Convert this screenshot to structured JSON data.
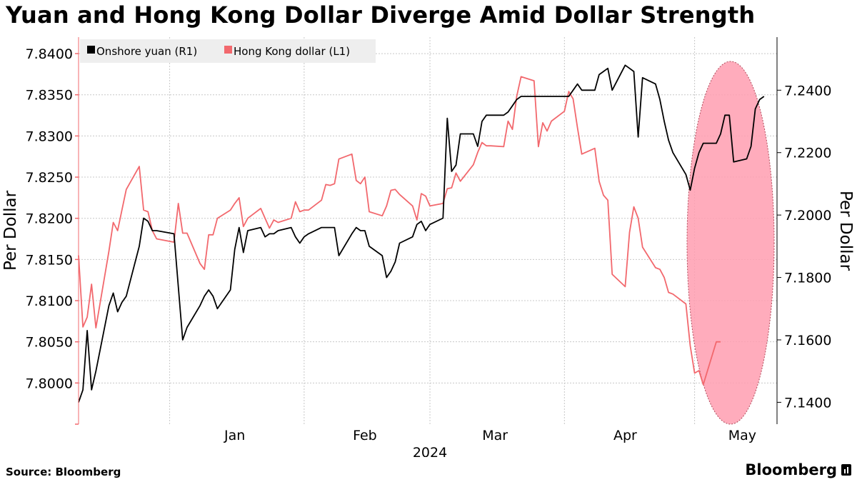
{
  "chart_data": {
    "type": "line",
    "title": "Yuan and Hong Kong Dollar Diverge Amid Dollar Strength",
    "x_tick_labels": [
      "Jan",
      "Feb",
      "Mar",
      "Apr",
      "May"
    ],
    "x_year_label": "2024",
    "left_axis": {
      "label": "Per Dollar",
      "range": [
        7.795,
        7.842
      ],
      "ticks": [
        7.8,
        7.805,
        7.81,
        7.815,
        7.82,
        7.825,
        7.83,
        7.835,
        7.84
      ],
      "tick_labels": [
        "7.8000",
        "7.8050",
        "7.8100",
        "7.8150",
        "7.8200",
        "7.8250",
        "7.8300",
        "7.8350",
        "7.8400"
      ]
    },
    "right_axis": {
      "label": "Per Dollar",
      "range": [
        7.133,
        7.257
      ],
      "ticks": [
        7.14,
        7.16,
        7.18,
        7.2,
        7.22,
        7.24
      ],
      "tick_labels": [
        "7.1400",
        "7.1600",
        "7.1800",
        "7.2000",
        "7.2200",
        "7.2400"
      ]
    },
    "grid": true,
    "legend_position": "top-left",
    "highlight": "shaded ellipse over May",
    "series": [
      {
        "name": "Onshore yuan (R1)",
        "axis": "right",
        "color": "#000000",
        "points": [
          [
            "2023-12-11",
            7.14
          ],
          [
            "2023-12-12",
            7.144
          ],
          [
            "2023-12-13",
            7.163
          ],
          [
            "2023-12-14",
            7.144
          ],
          [
            "2023-12-15",
            7.15
          ],
          [
            "2023-12-18",
            7.171
          ],
          [
            "2023-12-19",
            7.175
          ],
          [
            "2023-12-20",
            7.169
          ],
          [
            "2023-12-21",
            7.172
          ],
          [
            "2023-12-22",
            7.174
          ],
          [
            "2023-12-25",
            7.19
          ],
          [
            "2023-12-26",
            7.199
          ],
          [
            "2023-12-27",
            7.198
          ],
          [
            "2023-12-28",
            7.195
          ],
          [
            "2023-12-29",
            7.195
          ],
          [
            "2024-01-02",
            7.194
          ],
          [
            "2024-01-03",
            7.177
          ],
          [
            "2024-01-04",
            7.16
          ],
          [
            "2024-01-05",
            7.164
          ],
          [
            "2024-01-08",
            7.171
          ],
          [
            "2024-01-09",
            7.174
          ],
          [
            "2024-01-10",
            7.176
          ],
          [
            "2024-01-11",
            7.174
          ],
          [
            "2024-01-12",
            7.17
          ],
          [
            "2024-01-15",
            7.176
          ],
          [
            "2024-01-16",
            7.189
          ],
          [
            "2024-01-17",
            7.196
          ],
          [
            "2024-01-18",
            7.188
          ],
          [
            "2024-01-19",
            7.195
          ],
          [
            "2024-01-22",
            7.196
          ],
          [
            "2024-01-23",
            7.193
          ],
          [
            "2024-01-24",
            7.194
          ],
          [
            "2024-01-25",
            7.194
          ],
          [
            "2024-01-26",
            7.195
          ],
          [
            "2024-01-29",
            7.196
          ],
          [
            "2024-01-30",
            7.193
          ],
          [
            "2024-01-31",
            7.191
          ],
          [
            "2024-02-01",
            7.193
          ],
          [
            "2024-02-02",
            7.194
          ],
          [
            "2024-02-05",
            7.196
          ],
          [
            "2024-02-06",
            7.196
          ],
          [
            "2024-02-07",
            7.196
          ],
          [
            "2024-02-08",
            7.196
          ],
          [
            "2024-02-09",
            7.187
          ],
          [
            "2024-02-12",
            7.194
          ],
          [
            "2024-02-13",
            7.196
          ],
          [
            "2024-02-14",
            7.195
          ],
          [
            "2024-02-15",
            7.195
          ],
          [
            "2024-02-16",
            7.19
          ],
          [
            "2024-02-19",
            7.187
          ],
          [
            "2024-02-20",
            7.18
          ],
          [
            "2024-02-21",
            7.182
          ],
          [
            "2024-02-22",
            7.185
          ],
          [
            "2024-02-23",
            7.191
          ],
          [
            "2024-02-26",
            7.193
          ],
          [
            "2024-02-27",
            7.197
          ],
          [
            "2024-02-28",
            7.198
          ],
          [
            "2024-02-29",
            7.195
          ],
          [
            "2024-03-01",
            7.197
          ],
          [
            "2024-03-04",
            7.199
          ],
          [
            "2024-03-05",
            7.231
          ],
          [
            "2024-03-06",
            7.214
          ],
          [
            "2024-03-07",
            7.216
          ],
          [
            "2024-03-08",
            7.226
          ],
          [
            "2024-03-11",
            7.226
          ],
          [
            "2024-03-12",
            7.222
          ],
          [
            "2024-03-13",
            7.23
          ],
          [
            "2024-03-14",
            7.232
          ],
          [
            "2024-03-15",
            7.232
          ],
          [
            "2024-03-18",
            7.232
          ],
          [
            "2024-03-19",
            7.233
          ],
          [
            "2024-03-20",
            7.235
          ],
          [
            "2024-03-21",
            7.237
          ],
          [
            "2024-03-22",
            7.238
          ],
          [
            "2024-03-25",
            7.238
          ],
          [
            "2024-03-26",
            7.238
          ],
          [
            "2024-03-27",
            7.238
          ],
          [
            "2024-03-28",
            7.238
          ],
          [
            "2024-03-29",
            7.238
          ],
          [
            "2024-04-01",
            7.238
          ],
          [
            "2024-04-02",
            7.238
          ],
          [
            "2024-04-03",
            7.24
          ],
          [
            "2024-04-04",
            7.242
          ],
          [
            "2024-04-05",
            7.24
          ],
          [
            "2024-04-08",
            7.24
          ],
          [
            "2024-04-09",
            7.245
          ],
          [
            "2024-04-10",
            7.246
          ],
          [
            "2024-04-11",
            7.247
          ],
          [
            "2024-04-12",
            7.24
          ],
          [
            "2024-04-15",
            7.248
          ],
          [
            "2024-04-16",
            7.247
          ],
          [
            "2024-04-17",
            7.246
          ],
          [
            "2024-04-18",
            7.225
          ],
          [
            "2024-04-19",
            7.244
          ],
          [
            "2024-04-22",
            7.242
          ],
          [
            "2024-04-23",
            7.237
          ],
          [
            "2024-04-24",
            7.23
          ],
          [
            "2024-04-25",
            7.224
          ],
          [
            "2024-04-26",
            7.22
          ],
          [
            "2024-04-29",
            7.213
          ],
          [
            "2024-04-30",
            7.208
          ],
          [
            "2024-05-01",
            7.215
          ],
          [
            "2024-05-02",
            7.22
          ],
          [
            "2024-05-03",
            7.223
          ],
          [
            "2024-05-06",
            7.223
          ],
          [
            "2024-05-07",
            7.226
          ],
          [
            "2024-05-08",
            7.232
          ],
          [
            "2024-05-09",
            7.232
          ],
          [
            "2024-05-10",
            7.217
          ],
          [
            "2024-05-13",
            7.218
          ],
          [
            "2024-05-14",
            7.222
          ],
          [
            "2024-05-15",
            7.234
          ],
          [
            "2024-05-16",
            7.237
          ],
          [
            "2024-05-17",
            7.238
          ]
        ]
      },
      {
        "name": "Hong Kong dollar (L1)",
        "axis": "left",
        "color": "#f2686d",
        "points": [
          [
            "2023-12-11",
            7.8155
          ],
          [
            "2023-12-12",
            7.8068
          ],
          [
            "2023-12-13",
            7.808
          ],
          [
            "2023-12-14",
            7.812
          ],
          [
            "2023-12-15",
            7.8067
          ],
          [
            "2023-12-18",
            7.816
          ],
          [
            "2023-12-19",
            7.8195
          ],
          [
            "2023-12-20",
            7.8185
          ],
          [
            "2023-12-21",
            7.821
          ],
          [
            "2023-12-22",
            7.8235
          ],
          [
            "2023-12-25",
            7.8263
          ],
          [
            "2023-12-26",
            7.821
          ],
          [
            "2023-12-27",
            7.8208
          ],
          [
            "2023-12-28",
            7.8185
          ],
          [
            "2023-12-29",
            7.8175
          ],
          [
            "2024-01-02",
            7.8171
          ],
          [
            "2024-01-03",
            7.8218
          ],
          [
            "2024-01-04",
            7.8182
          ],
          [
            "2024-01-05",
            7.8182
          ],
          [
            "2024-01-08",
            7.8145
          ],
          [
            "2024-01-09",
            7.8138
          ],
          [
            "2024-01-10",
            7.818
          ],
          [
            "2024-01-11",
            7.818
          ],
          [
            "2024-01-12",
            7.82
          ],
          [
            "2024-01-15",
            7.821
          ],
          [
            "2024-01-16",
            7.8218
          ],
          [
            "2024-01-17",
            7.8225
          ],
          [
            "2024-01-18",
            7.819
          ],
          [
            "2024-01-19",
            7.82
          ],
          [
            "2024-01-22",
            7.8212
          ],
          [
            "2024-01-23",
            7.82
          ],
          [
            "2024-01-24",
            7.8188
          ],
          [
            "2024-01-25",
            7.8198
          ],
          [
            "2024-01-26",
            7.8195
          ],
          [
            "2024-01-29",
            7.82
          ],
          [
            "2024-01-30",
            7.822
          ],
          [
            "2024-01-31",
            7.8208
          ],
          [
            "2024-02-01",
            7.821
          ],
          [
            "2024-02-02",
            7.821
          ],
          [
            "2024-02-05",
            7.8222
          ],
          [
            "2024-02-06",
            7.8241
          ],
          [
            "2024-02-07",
            7.824
          ],
          [
            "2024-02-08",
            7.8242
          ],
          [
            "2024-02-09",
            7.8272
          ],
          [
            "2024-02-12",
            7.8278
          ],
          [
            "2024-02-13",
            7.8246
          ],
          [
            "2024-02-14",
            7.8242
          ],
          [
            "2024-02-15",
            7.825
          ],
          [
            "2024-02-16",
            7.8208
          ],
          [
            "2024-02-19",
            7.8203
          ],
          [
            "2024-02-20",
            7.8215
          ],
          [
            "2024-02-21",
            7.8234
          ],
          [
            "2024-02-22",
            7.8235
          ],
          [
            "2024-02-23",
            7.8229
          ],
          [
            "2024-02-26",
            7.8215
          ],
          [
            "2024-02-27",
            7.8198
          ],
          [
            "2024-02-28",
            7.823
          ],
          [
            "2024-02-29",
            7.8227
          ],
          [
            "2024-03-01",
            7.8215
          ],
          [
            "2024-03-04",
            7.8218
          ],
          [
            "2024-03-05",
            7.8236
          ],
          [
            "2024-03-06",
            7.8237
          ],
          [
            "2024-03-07",
            7.8255
          ],
          [
            "2024-03-08",
            7.8245
          ],
          [
            "2024-03-11",
            7.8265
          ],
          [
            "2024-03-12",
            7.828
          ],
          [
            "2024-03-13",
            7.8292
          ],
          [
            "2024-03-14",
            7.8288
          ],
          [
            "2024-03-15",
            7.8288
          ],
          [
            "2024-03-18",
            7.8287
          ],
          [
            "2024-03-19",
            7.8318
          ],
          [
            "2024-03-20",
            7.8308
          ],
          [
            "2024-03-21",
            7.8348
          ],
          [
            "2024-03-22",
            7.8372
          ],
          [
            "2024-03-25",
            7.8367
          ],
          [
            "2024-03-26",
            7.8287
          ],
          [
            "2024-03-27",
            7.8316
          ],
          [
            "2024-03-28",
            7.8306
          ],
          [
            "2024-03-29",
            7.8318
          ],
          [
            "2024-04-01",
            7.833
          ],
          [
            "2024-04-02",
            7.8354
          ],
          [
            "2024-04-03",
            7.8345
          ],
          [
            "2024-04-04",
            7.831
          ],
          [
            "2024-04-05",
            7.8278
          ],
          [
            "2024-04-08",
            7.8285
          ],
          [
            "2024-04-09",
            7.8245
          ],
          [
            "2024-04-10",
            7.8228
          ],
          [
            "2024-04-11",
            7.8222
          ],
          [
            "2024-04-12",
            7.8132
          ],
          [
            "2024-04-15",
            7.8117
          ],
          [
            "2024-04-16",
            7.8183
          ],
          [
            "2024-04-17",
            7.8214
          ],
          [
            "2024-04-18",
            7.82
          ],
          [
            "2024-04-19",
            7.8165
          ],
          [
            "2024-04-22",
            7.814
          ],
          [
            "2024-04-23",
            7.8138
          ],
          [
            "2024-04-24",
            7.8128
          ],
          [
            "2024-04-25",
            7.811
          ],
          [
            "2024-04-26",
            7.8108
          ],
          [
            "2024-04-29",
            7.8096
          ],
          [
            "2024-04-30",
            7.8045
          ],
          [
            "2024-05-01",
            7.8012
          ],
          [
            "2024-05-02",
            7.8015
          ],
          [
            "2024-05-03",
            7.7998
          ],
          [
            "2024-05-06",
            7.805
          ],
          [
            "2024-05-07",
            7.805
          ]
        ]
      }
    ]
  },
  "source": "Source: Bloomberg",
  "brand": "Bloomberg"
}
